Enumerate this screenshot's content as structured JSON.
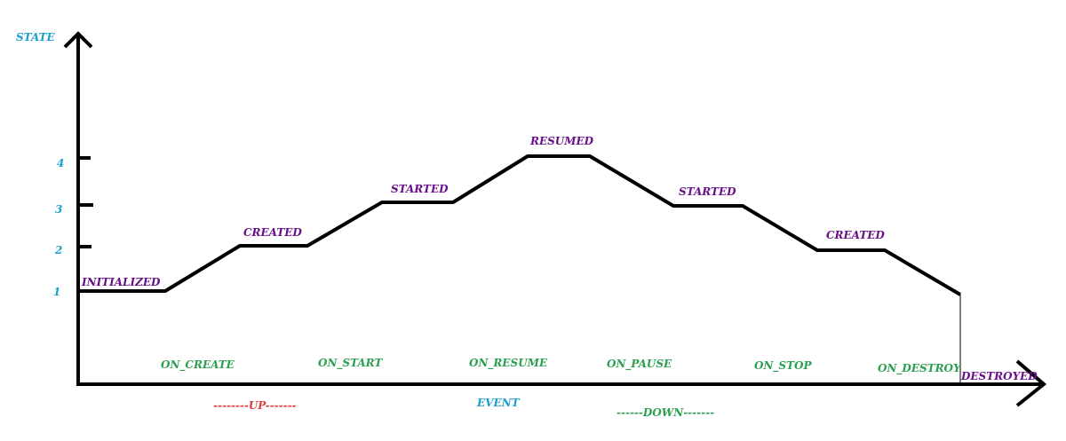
{
  "y_axis": {
    "label": "STATE",
    "ticks": [
      "1",
      "2",
      "3",
      "4"
    ]
  },
  "x_axis": {
    "label": "EVENT"
  },
  "states": [
    {
      "label": "INITIALIZED",
      "level": 1
    },
    {
      "label": "CREATED",
      "level": 2
    },
    {
      "label": "STARTED",
      "level": 3
    },
    {
      "label": "RESUMED",
      "level": 4
    },
    {
      "label": "STARTED",
      "level": 3
    },
    {
      "label": "CREATED",
      "level": 2
    },
    {
      "label": "DESTROYED",
      "level": 0
    }
  ],
  "events": [
    "ON_CREATE",
    "ON_START",
    "ON_RESUME",
    "ON_PAUSE",
    "ON_STOP",
    "ON_DESTROY"
  ],
  "phases": {
    "up": "--------UP-------",
    "down": "------DOWN-------"
  },
  "colors": {
    "axis_text": "#1a9fd0",
    "state_text": "#6a0f8a",
    "event_text": "#2aa04f",
    "up_text": "#e03a3a",
    "line": "#000000"
  }
}
